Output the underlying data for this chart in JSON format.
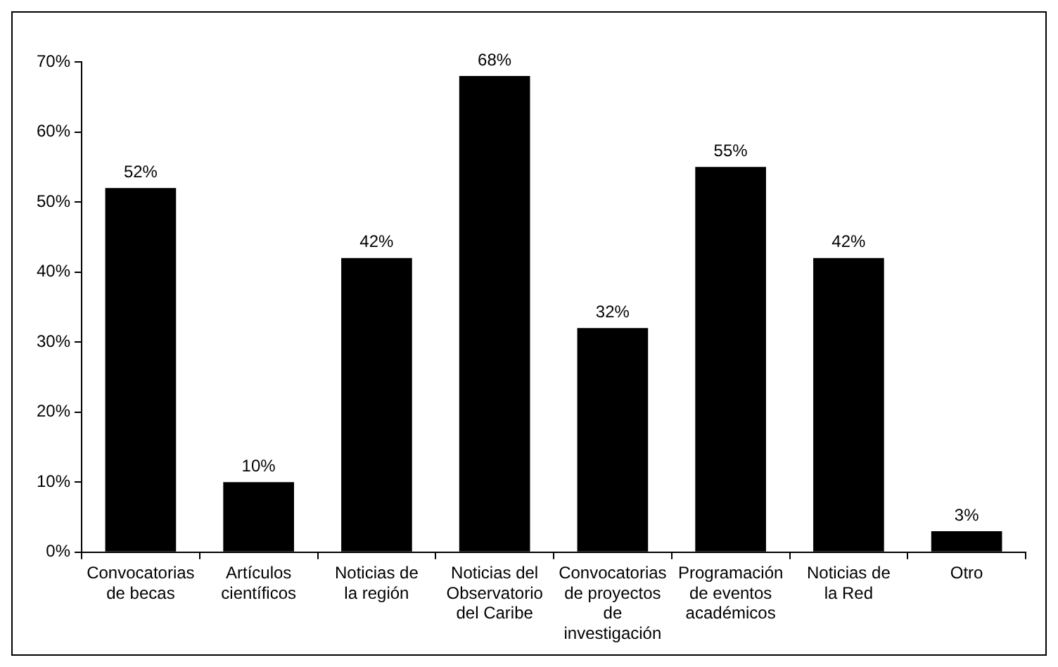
{
  "chart_data": {
    "type": "bar",
    "categories": [
      "Convocatorias de becas",
      "Artículos científicos",
      "Noticias de la región",
      "Noticias del Observatorio del Caribe",
      "Convocatorias de proyectos de investigación",
      "Programación de eventos académicos",
      "Noticias de la Red",
      "Otro"
    ],
    "values": [
      52,
      10,
      42,
      68,
      32,
      55,
      42,
      3
    ],
    "color": "#000000",
    "value_labels": [
      "52%",
      "10%",
      "42%",
      "68%",
      "32%",
      "55%",
      "42%",
      "3%"
    ],
    "ylim": [
      0,
      70
    ],
    "yticks": [
      {
        "value": 0,
        "label": "0%"
      },
      {
        "value": 10,
        "label": "10%"
      },
      {
        "value": 20,
        "label": "20%"
      },
      {
        "value": 30,
        "label": "30%"
      },
      {
        "value": 40,
        "label": "40%"
      },
      {
        "value": 50,
        "label": "50%"
      },
      {
        "value": 60,
        "label": "60%"
      },
      {
        "value": 70,
        "label": "70%"
      }
    ],
    "grid": false,
    "legend": false
  }
}
